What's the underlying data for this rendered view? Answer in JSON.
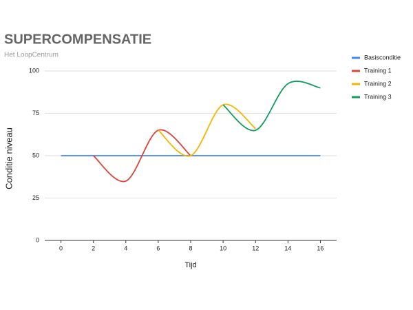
{
  "chart_data": {
    "type": "line",
    "title": "SUPERCOMPENSATIE",
    "subtitle": "Het LoopCentrum",
    "x_label": "Tijd",
    "y_label": "Conditie niveau",
    "xlim": [
      -1,
      17
    ],
    "xticks": [
      0,
      2,
      4,
      6,
      8,
      10,
      12,
      14,
      16
    ],
    "ylim": [
      0,
      100
    ],
    "yticks": [
      0,
      25,
      50,
      75,
      100
    ],
    "grid": true,
    "legend": "right",
    "series": [
      {
        "name": "Basisconditie",
        "color": "#4285f4",
        "x": [
          0,
          16
        ],
        "values": [
          50,
          50
        ]
      },
      {
        "name": "Training 1",
        "color": "#db4437",
        "x": [
          2,
          4,
          6,
          8
        ],
        "values": [
          50,
          35,
          65,
          50
        ]
      },
      {
        "name": "Training 2",
        "color": "#f4b400",
        "x": [
          6,
          8,
          10,
          12
        ],
        "values": [
          65,
          50,
          80,
          66
        ]
      },
      {
        "name": "Training 3",
        "color": "#0f9d58",
        "x": [
          10,
          12,
          14,
          16
        ],
        "values": [
          80,
          65,
          92.5,
          90
        ]
      }
    ]
  }
}
